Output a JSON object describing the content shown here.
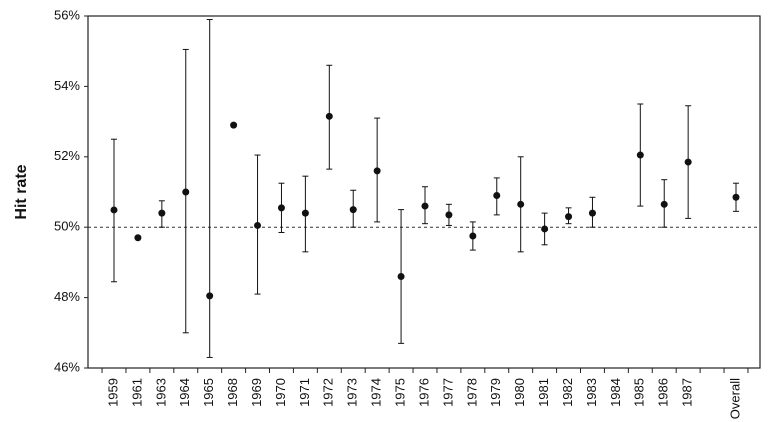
{
  "chart_data": {
    "type": "errorbar",
    "y_label": "Hit rate",
    "categories": [
      "1959",
      "1961",
      "1963",
      "1964",
      "1965",
      "1968",
      "1969",
      "1970",
      "1971",
      "1972",
      "1973",
      "1974",
      "1975",
      "1976",
      "1977",
      "1978",
      "1979",
      "1980",
      "1981",
      "1982",
      "1983",
      "1984",
      "1985",
      "1986",
      "1987",
      null,
      "Overall"
    ],
    "values": [
      50.49,
      49.7,
      50.4,
      51.0,
      48.05,
      52.9,
      50.05,
      50.55,
      50.4,
      53.15,
      50.5,
      51.6,
      48.6,
      50.6,
      50.35,
      49.75,
      50.9,
      50.65,
      49.95,
      50.3,
      50.4,
      null,
      52.05,
      50.65,
      51.85,
      null,
      50.85
    ],
    "lower": [
      48.45,
      null,
      50.0,
      47.0,
      46.3,
      null,
      48.1,
      49.85,
      49.3,
      51.65,
      50.0,
      50.15,
      46.7,
      50.1,
      50.05,
      49.35,
      50.35,
      49.3,
      49.5,
      50.1,
      50.0,
      null,
      50.6,
      50.0,
      50.25,
      null,
      50.45
    ],
    "upper": [
      52.5,
      null,
      50.75,
      55.05,
      55.9,
      null,
      52.05,
      51.25,
      51.45,
      54.6,
      51.05,
      53.1,
      50.5,
      51.15,
      50.65,
      50.15,
      51.4,
      52.0,
      50.4,
      50.55,
      50.85,
      null,
      53.5,
      51.35,
      53.45,
      null,
      51.25
    ],
    "color": "#111111",
    "reference_line": 50,
    "ylim": [
      46,
      56
    ],
    "yticks": [
      {
        "value": 46,
        "label": "46%"
      },
      {
        "value": 48,
        "label": "48%"
      },
      {
        "value": 50,
        "label": "50%"
      },
      {
        "value": 52,
        "label": "52%"
      },
      {
        "value": 54,
        "label": "54%"
      },
      {
        "value": 56,
        "label": "56%"
      }
    ]
  }
}
